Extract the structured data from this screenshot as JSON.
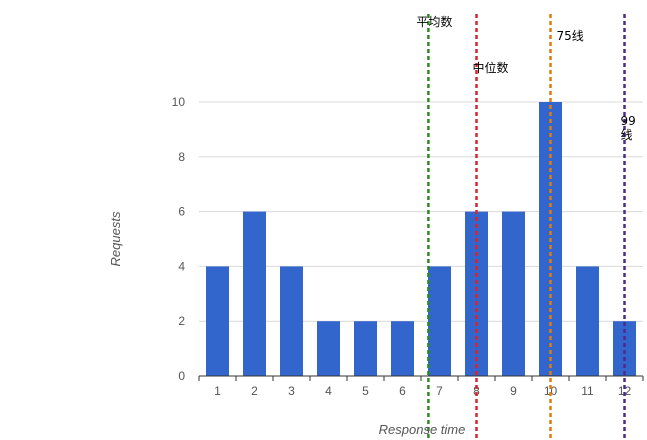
{
  "chart_data": {
    "type": "bar",
    "title": "",
    "xlabel": "Response time",
    "ylabel": "Requests",
    "categories": [
      "1",
      "2",
      "3",
      "4",
      "5",
      "6",
      "7",
      "8",
      "9",
      "10",
      "11",
      "12"
    ],
    "values": [
      4,
      6,
      4,
      2,
      2,
      2,
      4,
      6,
      6,
      10,
      4,
      2
    ],
    "ylim": [
      0,
      11
    ],
    "yticks": [
      0,
      2,
      4,
      6,
      8,
      10
    ],
    "grid": true,
    "bar_color": "#3366cc",
    "reference_lines": [
      {
        "label_lines": [
          "平均数"
        ],
        "x": 6.7,
        "color": "#2e8b1e"
      },
      {
        "label_lines": [
          "中位数"
        ],
        "x": 8.0,
        "color": "#d9232d"
      },
      {
        "label_lines": [
          "75线"
        ],
        "x": 10.0,
        "color": "#e07a10"
      },
      {
        "label_lines": [
          "99",
          "线"
        ],
        "x": 12.0,
        "color": "#4b2a8c"
      }
    ]
  }
}
